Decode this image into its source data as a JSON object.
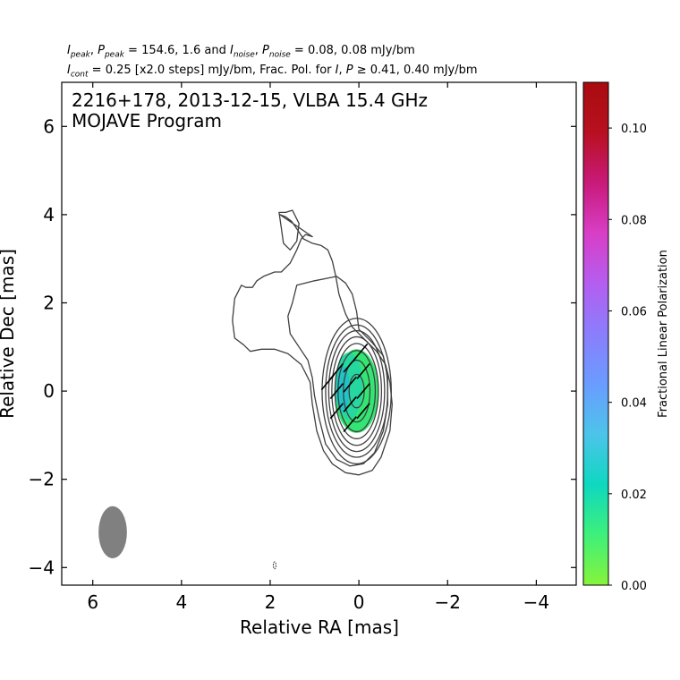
{
  "header": {
    "line1": {
      "i_peak": "I",
      "i_peak_sub": "peak",
      "p_peak": "P",
      "p_peak_sub": "peak",
      "peak_values": " = 154.6, 1.6 and ",
      "i_noise": "I",
      "i_noise_sub": "noise",
      "p_noise": "P",
      "p_noise_sub": "noise",
      "noise_values": " = 0.08, 0.08 mJy/bm"
    },
    "line2": {
      "i_cont": "I",
      "i_cont_sub": "cont",
      "cont_text": " = 0.25 [x2.0 steps] mJy/bm, Frac. Pol. for ",
      "i": "I",
      "p": "P",
      "thresh_text": " ≥ 0.41, 0.40 mJy/bm"
    }
  },
  "chart_data": {
    "type": "contour",
    "title": "2216+178, 2013-12-15, VLBA 15.4 GHz",
    "subtitle": "MOJAVE Program",
    "xlabel": "Relative RA [mas]",
    "ylabel": "Relative Dec [mas]",
    "xlim": [
      6.7,
      -4.9
    ],
    "ylim": [
      -4.4,
      7.0
    ],
    "xticks": [
      6,
      4,
      2,
      0,
      -2,
      -4
    ],
    "yticks": [
      6,
      4,
      2,
      0,
      -2,
      -4
    ],
    "xtick_labels": [
      "6",
      "4",
      "2",
      "0",
      "−2",
      "−4"
    ],
    "ytick_labels": [
      "6",
      "4",
      "2",
      "0",
      "−2",
      "−4"
    ],
    "contour_color": "#404040",
    "contours": [
      {
        "level": 0.25,
        "path": [
          [
            1.78,
            4.0
          ],
          [
            1.65,
            3.95
          ],
          [
            1.52,
            3.85
          ],
          [
            1.38,
            3.65
          ],
          [
            1.25,
            3.45
          ],
          [
            1.05,
            3.35
          ],
          [
            0.85,
            3.3
          ],
          [
            0.7,
            3.2
          ],
          [
            0.6,
            2.95
          ],
          [
            0.52,
            2.6
          ],
          [
            0.45,
            2.2
          ],
          [
            0.3,
            1.75
          ],
          [
            0.15,
            1.45
          ],
          [
            -0.1,
            1.2
          ],
          [
            -0.4,
            0.9
          ],
          [
            -0.6,
            0.6
          ],
          [
            -0.7,
            0.2
          ],
          [
            -0.75,
            -0.3
          ],
          [
            -0.7,
            -0.9
          ],
          [
            -0.5,
            -1.5
          ],
          [
            -0.3,
            -1.8
          ],
          [
            0.0,
            -1.9
          ],
          [
            0.3,
            -1.85
          ],
          [
            0.6,
            -1.65
          ],
          [
            0.8,
            -1.35
          ],
          [
            0.95,
            -0.9
          ],
          [
            1.05,
            -0.3
          ],
          [
            1.1,
            0.2
          ],
          [
            1.3,
            0.6
          ],
          [
            1.6,
            0.85
          ],
          [
            1.9,
            0.95
          ],
          [
            2.2,
            0.95
          ],
          [
            2.45,
            0.9
          ],
          [
            2.6,
            1.05
          ],
          [
            2.8,
            1.2
          ],
          [
            2.85,
            1.6
          ],
          [
            2.8,
            2.1
          ],
          [
            2.65,
            2.4
          ],
          [
            2.55,
            2.35
          ],
          [
            2.4,
            2.35
          ],
          [
            2.3,
            2.5
          ],
          [
            2.15,
            2.6
          ],
          [
            1.9,
            2.7
          ],
          [
            1.75,
            2.7
          ],
          [
            1.55,
            2.9
          ],
          [
            1.4,
            3.2
          ],
          [
            1.3,
            3.45
          ],
          [
            1.2,
            3.55
          ],
          [
            1.05,
            3.5
          ]
        ]
      },
      {
        "level": 0.25,
        "path": [
          [
            1.8,
            4.05
          ],
          [
            1.75,
            3.7
          ],
          [
            1.7,
            3.35
          ],
          [
            1.55,
            3.2
          ],
          [
            1.4,
            3.4
          ],
          [
            1.35,
            3.8
          ],
          [
            1.5,
            4.1
          ],
          [
            1.65,
            4.05
          ]
        ]
      },
      {
        "level": 0.5,
        "path": [
          [
            1.5,
            2.0
          ],
          [
            1.4,
            2.4
          ],
          [
            1.0,
            2.5
          ],
          [
            0.75,
            2.55
          ],
          [
            0.5,
            2.6
          ],
          [
            0.3,
            2.45
          ],
          [
            0.15,
            2.2
          ],
          [
            0.05,
            1.8
          ],
          [
            0.0,
            1.4
          ],
          [
            -0.3,
            1.1
          ],
          [
            -0.55,
            0.8
          ],
          [
            -0.65,
            0.3
          ],
          [
            -0.65,
            -0.3
          ],
          [
            -0.55,
            -0.9
          ],
          [
            -0.35,
            -1.4
          ],
          [
            -0.1,
            -1.65
          ],
          [
            0.2,
            -1.7
          ],
          [
            0.5,
            -1.55
          ],
          [
            0.75,
            -1.2
          ],
          [
            0.9,
            -0.6
          ],
          [
            1.0,
            -0.1
          ],
          [
            1.05,
            0.3
          ],
          [
            1.15,
            0.7
          ],
          [
            1.35,
            1.0
          ],
          [
            1.55,
            1.3
          ],
          [
            1.6,
            1.7
          ]
        ]
      },
      {
        "level": 1,
        "ellipse": [
          0.05,
          0.0,
          0.78,
          1.65
        ]
      },
      {
        "level": 2,
        "ellipse": [
          0.05,
          0.0,
          0.7,
          1.5
        ]
      },
      {
        "level": 4,
        "ellipse": [
          0.05,
          0.0,
          0.63,
          1.37
        ]
      },
      {
        "level": 8,
        "ellipse": [
          0.05,
          0.0,
          0.56,
          1.23
        ]
      },
      {
        "level": 16,
        "ellipse": [
          0.05,
          0.0,
          0.49,
          1.08
        ]
      },
      {
        "level": 32,
        "ellipse": [
          0.05,
          0.0,
          0.42,
          0.92
        ]
      },
      {
        "level": 64,
        "ellipse": [
          0.05,
          0.0,
          0.3,
          0.7
        ]
      },
      {
        "level": 128,
        "ellipse": [
          0.05,
          0.0,
          0.17,
          0.38
        ]
      }
    ],
    "polarization_region": {
      "center": [
        0.05,
        0.0
      ],
      "half_widths": [
        0.5,
        0.95
      ],
      "colors": [
        "#33e673",
        "#25d8a0",
        "#1ec4c8"
      ],
      "note_values": [
        0.005,
        0.02,
        0.03
      ]
    },
    "evpa_ticks": [
      [
        -0.05,
        0.9,
        40
      ],
      [
        -0.1,
        0.45,
        40
      ],
      [
        -0.1,
        0.0,
        40
      ],
      [
        -0.1,
        -0.45,
        40
      ],
      [
        0.2,
        0.6,
        40
      ],
      [
        0.2,
        0.15,
        40
      ],
      [
        0.2,
        -0.3,
        40
      ],
      [
        0.2,
        -0.75,
        40
      ],
      [
        0.5,
        0.45,
        40
      ],
      [
        0.5,
        0.0,
        40
      ],
      [
        0.5,
        -0.45,
        40
      ],
      [
        0.7,
        0.2,
        40
      ]
    ],
    "beam": {
      "x": 5.55,
      "y": -3.2,
      "major": 1.18,
      "minor": 0.64,
      "pa_deg": 0,
      "color": "#808080"
    },
    "small_feature": [
      1.9,
      -3.95
    ],
    "colorbar": {
      "label": "Fractional Linear Polarization",
      "range": [
        0.0,
        0.11
      ],
      "ticks": [
        0.0,
        0.02,
        0.04,
        0.06,
        0.08,
        0.1
      ],
      "tick_labels": [
        "0.00",
        "0.02",
        "0.04",
        "0.06",
        "0.08",
        "0.10"
      ],
      "colormap": [
        "#86f43a",
        "#3ef07a",
        "#0ed8c0",
        "#4cc4ea",
        "#6a9cff",
        "#8a7efc",
        "#b45ef0",
        "#d83ec6",
        "#c81a7a",
        "#b81020",
        "#a80c10"
      ]
    }
  }
}
